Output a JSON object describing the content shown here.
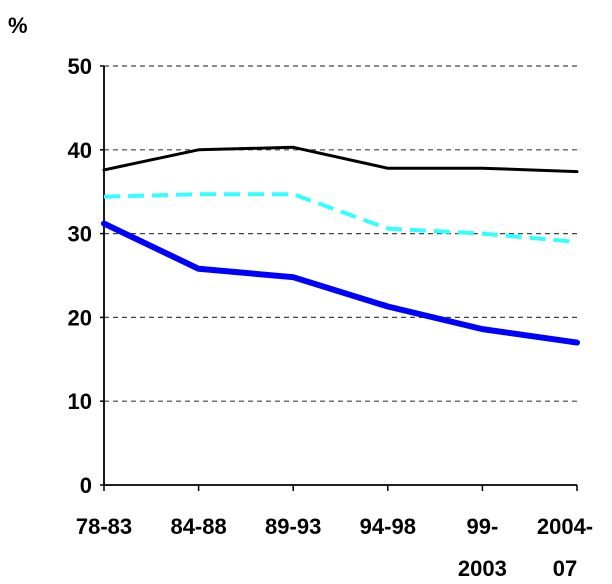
{
  "chart_data": {
    "type": "line",
    "categories": [
      "78-83",
      "84-88",
      "89-93",
      "94-98",
      "99-2003",
      "2004-07"
    ],
    "category_label_lines": [
      [
        "78-83"
      ],
      [
        "84-88"
      ],
      [
        "89-93"
      ],
      [
        "94-98"
      ],
      [
        "99-",
        "2003"
      ],
      [
        "2004-",
        "07"
      ]
    ],
    "ylabel": "%",
    "ylim": [
      0,
      50
    ],
    "yticks": [
      0,
      10,
      20,
      30,
      40,
      50
    ],
    "grid": true,
    "series": [
      {
        "values": [
          37.6,
          40.0,
          40.3,
          37.8,
          37.8,
          37.4
        ],
        "color": "#000000",
        "style": "solid",
        "weight": "thin"
      },
      {
        "values": [
          34.4,
          34.7,
          34.7,
          30.6,
          30.0,
          29.0
        ],
        "color": "#33ffff",
        "style": "dashed",
        "weight": "medium"
      },
      {
        "values": [
          31.2,
          25.8,
          24.8,
          21.3,
          18.6,
          17.0
        ],
        "color": "#0000ff",
        "style": "solid",
        "weight": "thick"
      }
    ]
  }
}
